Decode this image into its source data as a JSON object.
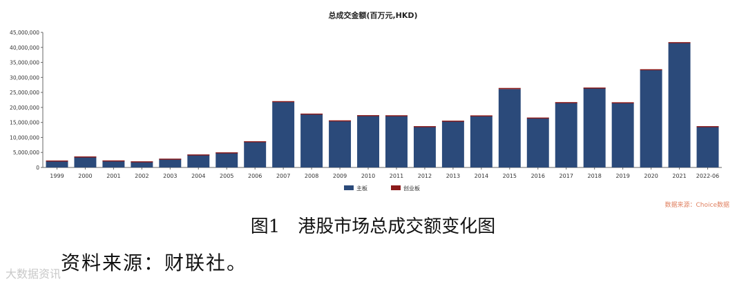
{
  "caption": "图1　港股市场总成交额变化图",
  "source_line": "资料来源：财联社。",
  "source_note": "数据来源：Choice数据",
  "watermark": "大数据资讯",
  "colors": {
    "main_board": "#2b4a7a",
    "gem": "#8b1a1a"
  },
  "chart_data": {
    "type": "bar",
    "title": "总成交金额(百万元,HKD)",
    "categories": [
      "1999",
      "2000",
      "2001",
      "2002",
      "2003",
      "2004",
      "2005",
      "2006",
      "2007",
      "2008",
      "2009",
      "2010",
      "2011",
      "2012",
      "2013",
      "2014",
      "2015",
      "2016",
      "2017",
      "2018",
      "2019",
      "2020",
      "2021",
      "2022-06"
    ],
    "series": [
      {
        "name": "主板",
        "values": [
          2300000,
          3600000,
          2300000,
          2000000,
          2900000,
          4300000,
          5000000,
          8700000,
          21800000,
          17800000,
          15600000,
          17300000,
          17300000,
          13700000,
          15500000,
          17200000,
          26100000,
          16400000,
          21600000,
          26500000,
          21600000,
          32500000,
          41500000,
          13700000
        ]
      },
      {
        "name": "创业板",
        "values": [
          20000,
          70000,
          50000,
          40000,
          30000,
          30000,
          30000,
          40000,
          300000,
          150000,
          100000,
          130000,
          90000,
          60000,
          100000,
          150000,
          380000,
          230000,
          170000,
          130000,
          120000,
          230000,
          250000,
          60000
        ]
      }
    ],
    "ylim": [
      0,
      45000000
    ],
    "yticks": [
      "0",
      "5,000,000",
      "10,000,000",
      "15,000,000",
      "20,000,000",
      "25,000,000",
      "30,000,000",
      "35,000,000",
      "40,000,000",
      "45,000,000"
    ],
    "legend_position": "bottom-center",
    "grid": false
  }
}
